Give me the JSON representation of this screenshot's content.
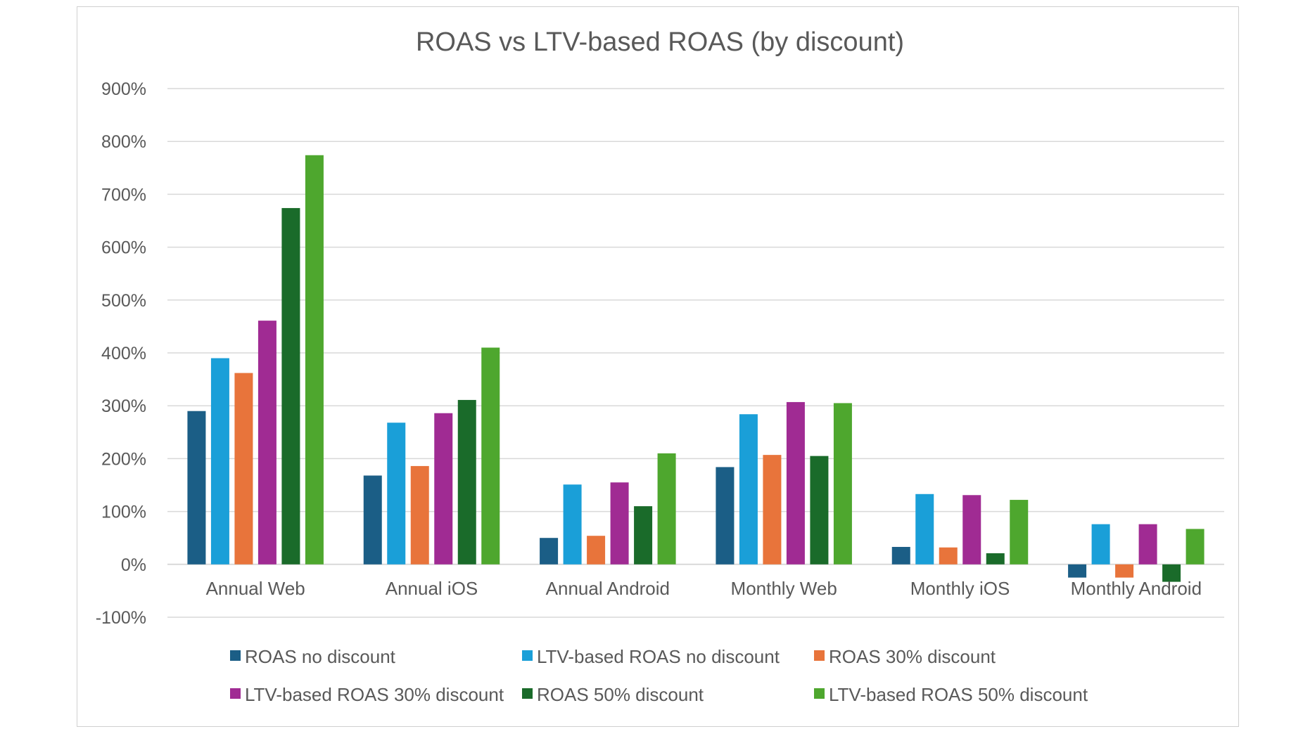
{
  "chart_data": {
    "type": "bar",
    "title": "ROAS vs LTV-based ROAS (by discount)",
    "xlabel": "",
    "ylabel": "",
    "ylim": [
      -100,
      900
    ],
    "yticks": [
      900,
      800,
      700,
      600,
      500,
      400,
      300,
      200,
      100,
      0,
      -100
    ],
    "ytick_labels": [
      "900%",
      "800%",
      "700%",
      "600%",
      "500%",
      "400%",
      "300%",
      "200%",
      "100%",
      "0%",
      "-100%"
    ],
    "grid": true,
    "legend_position": "bottom",
    "categories": [
      "Annual Web",
      "Annual iOS",
      "Annual Android",
      "Monthly Web",
      "Monthly iOS",
      "Monthly Android"
    ],
    "series": [
      {
        "name": "ROAS no discount",
        "color": "#1b5e86",
        "values": [
          290,
          168,
          50,
          184,
          33,
          -25
        ]
      },
      {
        "name": "LTV-based ROAS no discount",
        "color": "#1a9fd8",
        "values": [
          390,
          268,
          151,
          284,
          133,
          76
        ]
      },
      {
        "name": "ROAS 30% discount",
        "color": "#e8743b",
        "values": [
          362,
          186,
          54,
          207,
          32,
          -25
        ]
      },
      {
        "name": "LTV-based ROAS 30% discount",
        "color": "#a02b93",
        "values": [
          461,
          286,
          155,
          307,
          131,
          76
        ]
      },
      {
        "name": "ROAS 50% discount",
        "color": "#1a6b2a",
        "values": [
          674,
          311,
          110,
          205,
          21,
          -33
        ]
      },
      {
        "name": "LTV-based ROAS 50% discount",
        "color": "#4ea72e",
        "values": [
          774,
          410,
          210,
          305,
          122,
          67
        ]
      }
    ]
  }
}
